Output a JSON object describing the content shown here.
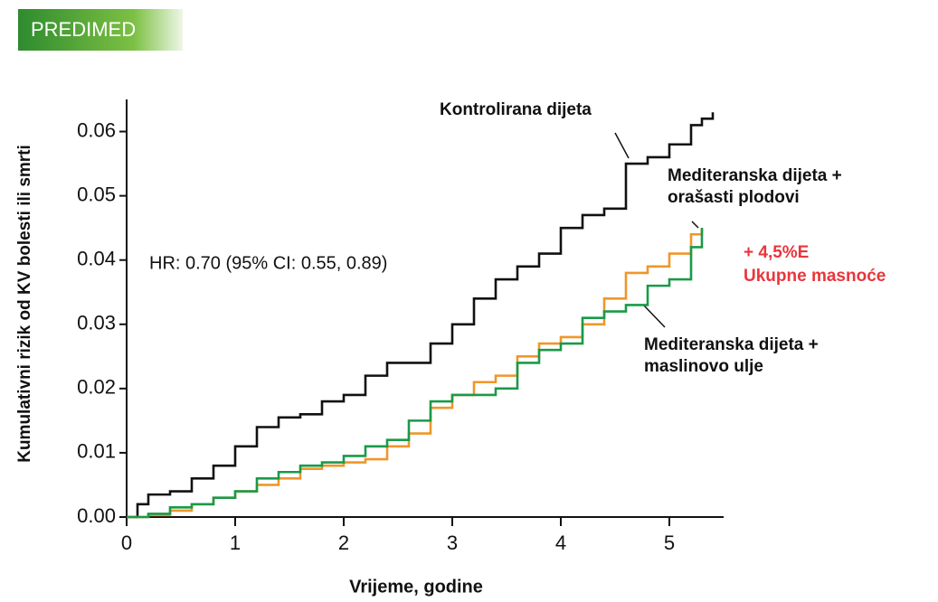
{
  "header": {
    "title": "PREDIMED"
  },
  "chart_data": {
    "type": "line",
    "xlabel": "Vrijeme, godine",
    "ylabel": "Kumulativni rizik od KV bolesti ili smrti",
    "xlim": [
      0,
      5.5
    ],
    "ylim": [
      0,
      0.065
    ],
    "xticks": [
      0,
      1,
      2,
      3,
      4,
      5
    ],
    "yticks": [
      {
        "value": 0,
        "label": "0.00"
      },
      0.01,
      0.02,
      0.03,
      0.04,
      0.05,
      0.06
    ],
    "annotations": [
      "HR: 0.70  (95% CI: 0.55, 0.89)",
      "+ 4,5%E",
      "Ukupne masnoće"
    ],
    "series": [
      {
        "name": "Kontrolirana dijeta",
        "color": "#111111",
        "x": [
          0,
          0.1,
          0.2,
          0.4,
          0.6,
          0.8,
          1.0,
          1.2,
          1.4,
          1.6,
          1.8,
          2.0,
          2.2,
          2.4,
          2.6,
          2.8,
          3.0,
          3.2,
          3.4,
          3.6,
          3.8,
          4.0,
          4.2,
          4.4,
          4.6,
          4.8,
          5.0,
          5.2,
          5.3,
          5.4
        ],
        "values": [
          0,
          0.002,
          0.0035,
          0.004,
          0.006,
          0.008,
          0.011,
          0.014,
          0.0155,
          0.016,
          0.018,
          0.019,
          0.022,
          0.024,
          0.024,
          0.027,
          0.03,
          0.034,
          0.037,
          0.039,
          0.041,
          0.045,
          0.047,
          0.048,
          0.055,
          0.056,
          0.058,
          0.061,
          0.062,
          0.063
        ]
      },
      {
        "name": "Mediteranska dijeta + orašasti plodovi",
        "color": "#f0962a",
        "x": [
          0,
          0.2,
          0.4,
          0.6,
          0.8,
          1.0,
          1.2,
          1.4,
          1.6,
          1.8,
          2.0,
          2.2,
          2.4,
          2.6,
          2.8,
          3.0,
          3.2,
          3.4,
          3.6,
          3.8,
          4.0,
          4.2,
          4.4,
          4.6,
          4.8,
          5.0,
          5.2,
          5.3
        ],
        "values": [
          0,
          0.0003,
          0.001,
          0.002,
          0.003,
          0.004,
          0.005,
          0.006,
          0.0075,
          0.008,
          0.0085,
          0.009,
          0.011,
          0.013,
          0.017,
          0.019,
          0.021,
          0.022,
          0.025,
          0.027,
          0.028,
          0.03,
          0.034,
          0.038,
          0.039,
          0.041,
          0.044,
          0.045
        ]
      },
      {
        "name": "Mediteranska dijeta + maslinovo ulje",
        "color": "#1a9a4a",
        "x": [
          0,
          0.2,
          0.4,
          0.6,
          0.8,
          1.0,
          1.2,
          1.4,
          1.6,
          1.8,
          2.0,
          2.2,
          2.4,
          2.6,
          2.8,
          3.0,
          3.2,
          3.4,
          3.6,
          3.8,
          4.0,
          4.2,
          4.4,
          4.6,
          4.8,
          5.0,
          5.2,
          5.3
        ],
        "values": [
          0,
          0.0005,
          0.0015,
          0.002,
          0.003,
          0.004,
          0.006,
          0.007,
          0.008,
          0.0085,
          0.0095,
          0.011,
          0.012,
          0.015,
          0.018,
          0.019,
          0.019,
          0.02,
          0.024,
          0.026,
          0.027,
          0.031,
          0.032,
          0.033,
          0.036,
          0.037,
          0.042,
          0.045
        ]
      }
    ]
  }
}
